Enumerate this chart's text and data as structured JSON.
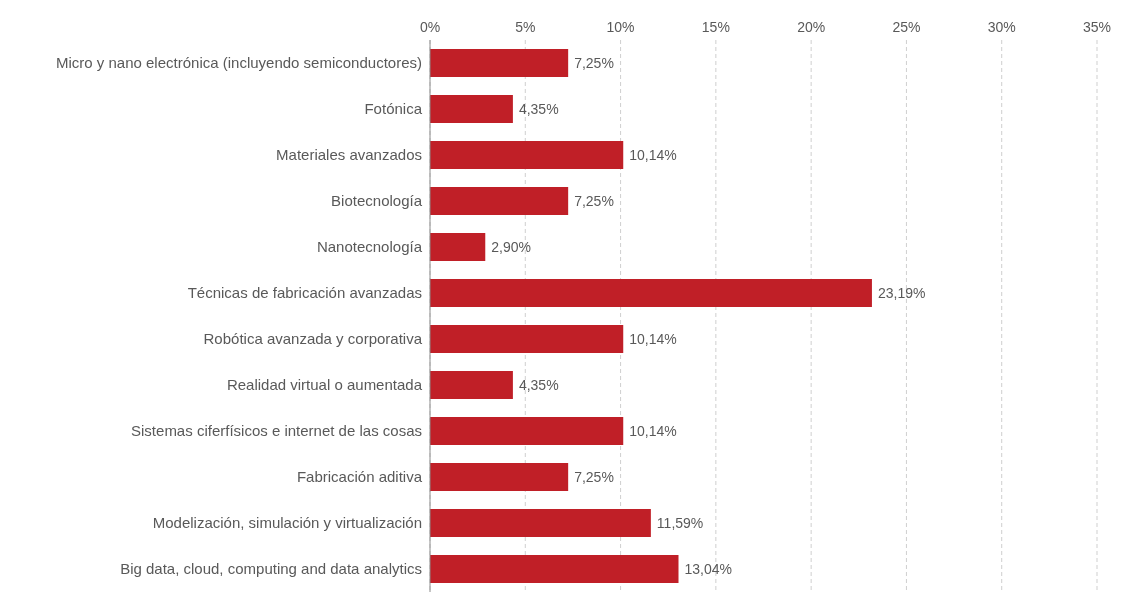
{
  "chart_data": {
    "type": "bar",
    "orientation": "horizontal",
    "categories": [
      "Micro y nano electrónica (incluyendo semiconductores)",
      "Fotónica",
      "Materiales avanzados",
      "Biotecnología",
      "Nanotecnología",
      "Técnicas de fabricación avanzadas",
      "Robótica avanzada y corporativa",
      "Realidad virtual o aumentada",
      "Sistemas ciferfísicos e internet de las cosas",
      "Fabricación aditiva",
      "Modelización, simulación y virtualización",
      "Big data, cloud, computing and data analytics"
    ],
    "values": [
      7.25,
      4.35,
      10.14,
      7.25,
      2.9,
      23.19,
      10.14,
      4.35,
      10.14,
      7.25,
      11.59,
      13.04
    ],
    "value_labels": [
      "7,25%",
      "4,35%",
      "10,14%",
      "7,25%",
      "2,90%",
      "23,19%",
      "10,14%",
      "4,35%",
      "10,14%",
      "7,25%",
      "11,59%",
      "13,04%"
    ],
    "color": "#c01f27",
    "xlim": [
      0,
      35
    ],
    "xticks": [
      {
        "value": 0,
        "label": "0%"
      },
      {
        "value": 5,
        "label": "5%"
      },
      {
        "value": 10,
        "label": "10%"
      },
      {
        "value": 15,
        "label": "15%"
      },
      {
        "value": 20,
        "label": "20%"
      },
      {
        "value": 25,
        "label": "25%"
      },
      {
        "value": 30,
        "label": "30%"
      },
      {
        "value": 35,
        "label": "35%"
      }
    ],
    "grid": "x",
    "legend": false
  }
}
